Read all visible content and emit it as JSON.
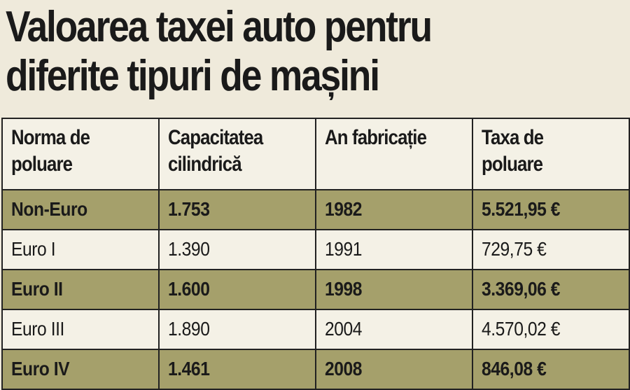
{
  "title": {
    "line1": "Valoarea taxei auto pentru",
    "line2": "diferite tipuri de mașini"
  },
  "table": {
    "headers": [
      [
        "Norma de",
        "poluare"
      ],
      [
        "Capacitatea",
        "cilindrică"
      ],
      [
        "An fabricație"
      ],
      [
        "Taxa de",
        "poluare"
      ]
    ],
    "rows": [
      {
        "norma": "Non-Euro",
        "capacitate": "1.753",
        "an": "1982",
        "taxa": "5.521,95 €"
      },
      {
        "norma": "Euro I",
        "capacitate": "1.390",
        "an": "1991",
        "taxa": "729,75 €"
      },
      {
        "norma": "Euro II",
        "capacitate": "1.600",
        "an": "1998",
        "taxa": "3.369,06 €"
      },
      {
        "norma": "Euro III",
        "capacitate": "1.890",
        "an": "2004",
        "taxa": "4.570,02 €"
      },
      {
        "norma": "Euro IV",
        "capacitate": "1.461",
        "an": "2008",
        "taxa": "846,08 €"
      }
    ]
  },
  "colors": {
    "background": "#efeadb",
    "highlight_row": "#a5a06b",
    "plain_row": "#f4f1e6",
    "border": "#222222"
  }
}
